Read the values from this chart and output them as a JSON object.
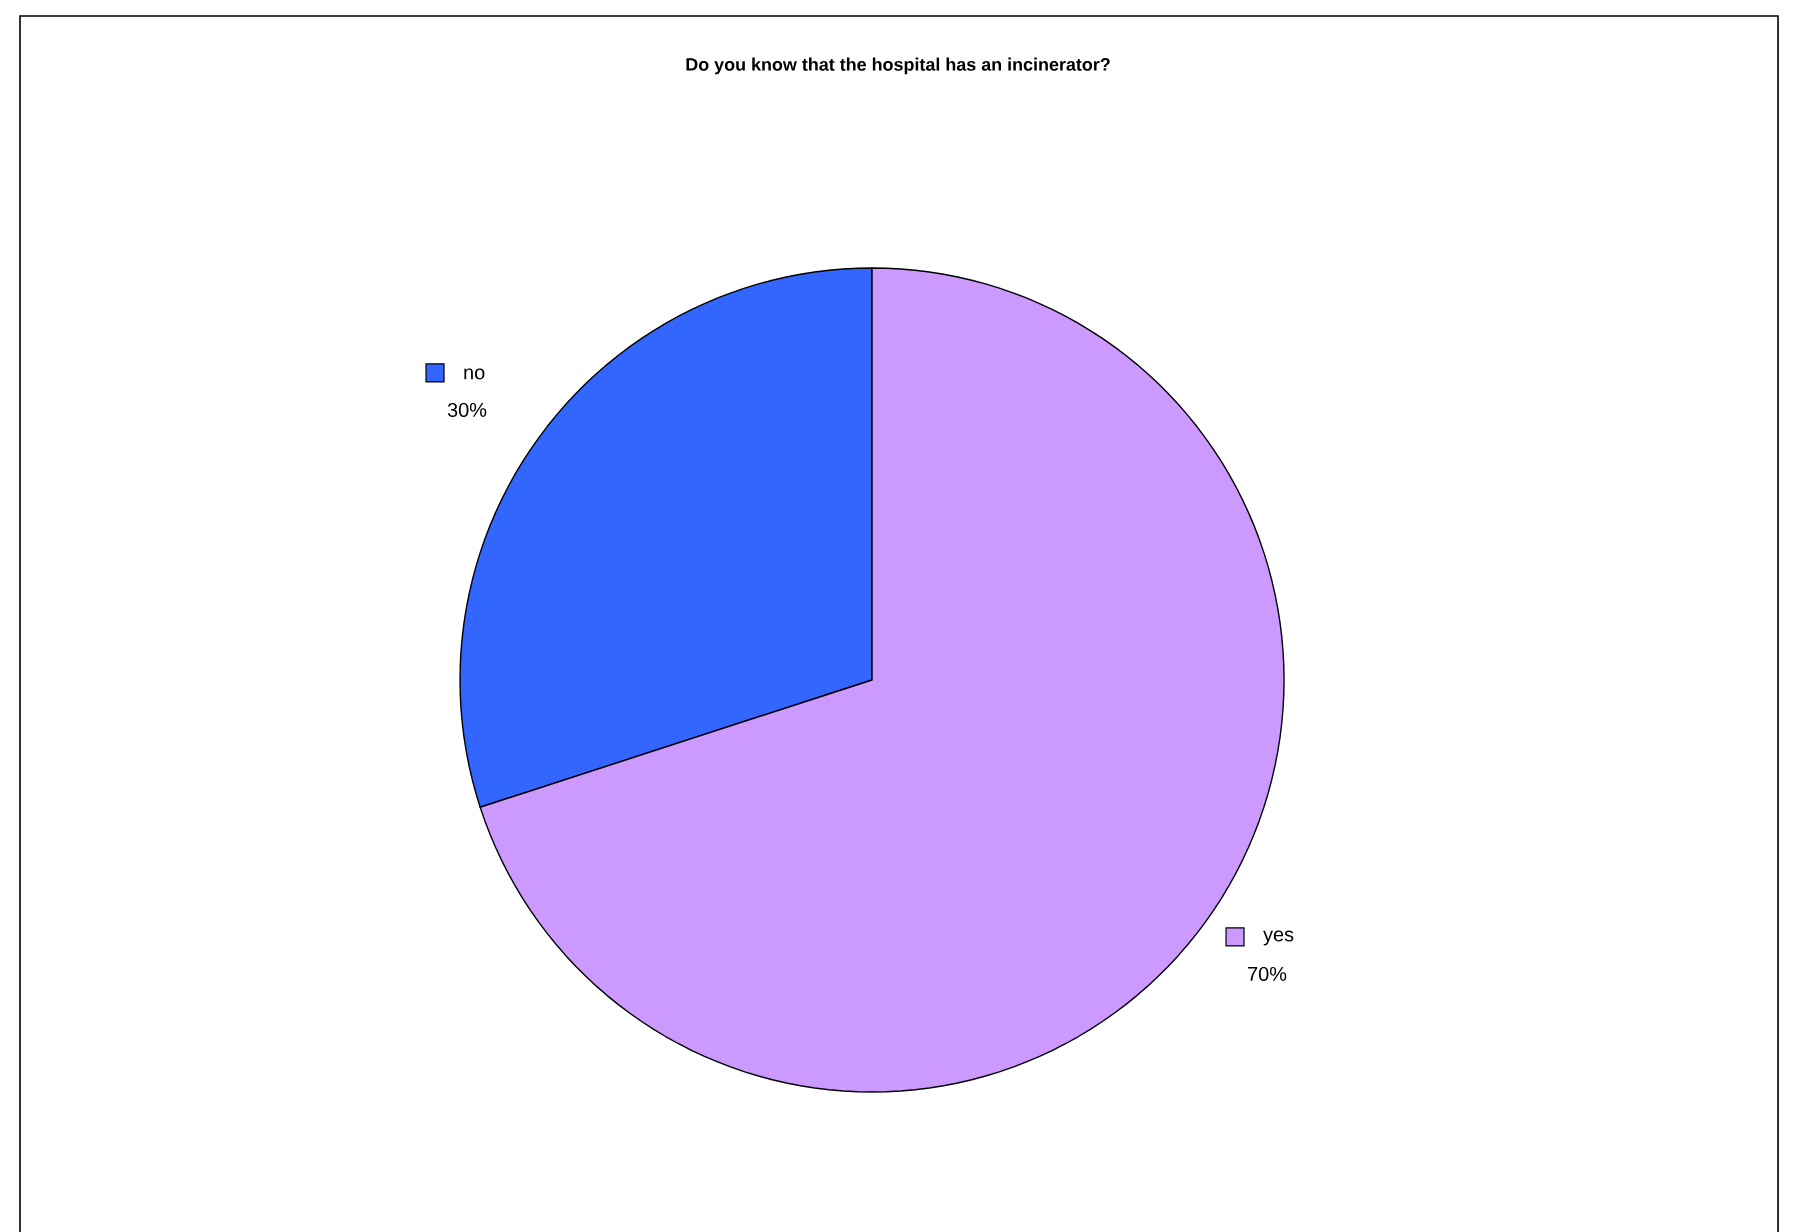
{
  "chart_data": {
    "type": "pie",
    "title": "Do you know that the hospital has an incinerator?",
    "categories": [
      "no",
      "yes"
    ],
    "values": [
      30,
      70
    ],
    "colors": [
      "#3366ff",
      "#cc99ff"
    ],
    "value_labels": [
      "30%",
      "70%"
    ],
    "legend": "center"
  }
}
